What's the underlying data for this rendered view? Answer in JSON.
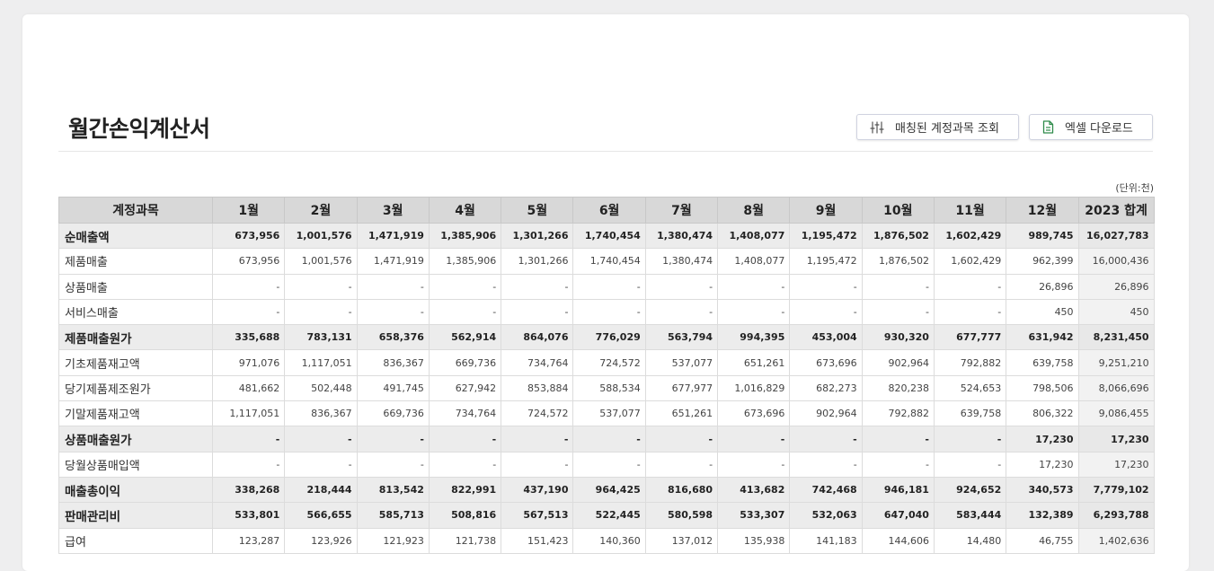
{
  "page": {
    "title": "월간손익계산서",
    "unit": "(단위:천)",
    "buttons": {
      "match_label": "매칭된 계정과목 조회",
      "excel_label": "엑셀 다운로드"
    },
    "icons": {
      "match": "sliders-icon",
      "excel": "spreadsheet-file-icon"
    },
    "colors": {
      "excel_icon": "#2e8b4a"
    }
  },
  "table": {
    "headers": [
      "계정과목",
      "1월",
      "2월",
      "3월",
      "4월",
      "5월",
      "6월",
      "7월",
      "8월",
      "9월",
      "10월",
      "11월",
      "12월",
      "2023 합계"
    ],
    "rows": [
      {
        "bold": true,
        "cells": [
          "순매출액",
          "673,956",
          "1,001,576",
          "1,471,919",
          "1,385,906",
          "1,301,266",
          "1,740,454",
          "1,380,474",
          "1,408,077",
          "1,195,472",
          "1,876,502",
          "1,602,429",
          "989,745",
          "16,027,783"
        ]
      },
      {
        "bold": false,
        "cells": [
          "제품매출",
          "673,956",
          "1,001,576",
          "1,471,919",
          "1,385,906",
          "1,301,266",
          "1,740,454",
          "1,380,474",
          "1,408,077",
          "1,195,472",
          "1,876,502",
          "1,602,429",
          "962,399",
          "16,000,436"
        ]
      },
      {
        "bold": false,
        "cells": [
          "상품매출",
          "-",
          "-",
          "-",
          "-",
          "-",
          "-",
          "-",
          "-",
          "-",
          "-",
          "-",
          "26,896",
          "26,896"
        ]
      },
      {
        "bold": false,
        "cells": [
          "서비스매출",
          "-",
          "-",
          "-",
          "-",
          "-",
          "-",
          "-",
          "-",
          "-",
          "-",
          "-",
          "450",
          "450"
        ]
      },
      {
        "bold": true,
        "cells": [
          "제품매출원가",
          "335,688",
          "783,131",
          "658,376",
          "562,914",
          "864,076",
          "776,029",
          "563,794",
          "994,395",
          "453,004",
          "930,320",
          "677,777",
          "631,942",
          "8,231,450"
        ]
      },
      {
        "bold": false,
        "cells": [
          "기초제품재고액",
          "971,076",
          "1,117,051",
          "836,367",
          "669,736",
          "734,764",
          "724,572",
          "537,077",
          "651,261",
          "673,696",
          "902,964",
          "792,882",
          "639,758",
          "9,251,210"
        ]
      },
      {
        "bold": false,
        "cells": [
          "당기제품제조원가",
          "481,662",
          "502,448",
          "491,745",
          "627,942",
          "853,884",
          "588,534",
          "677,977",
          "1,016,829",
          "682,273",
          "820,238",
          "524,653",
          "798,506",
          "8,066,696"
        ]
      },
      {
        "bold": false,
        "cells": [
          "기말제품재고액",
          "1,117,051",
          "836,367",
          "669,736",
          "734,764",
          "724,572",
          "537,077",
          "651,261",
          "673,696",
          "902,964",
          "792,882",
          "639,758",
          "806,322",
          "9,086,455"
        ]
      },
      {
        "bold": true,
        "cells": [
          "상품매출원가",
          "-",
          "-",
          "-",
          "-",
          "-",
          "-",
          "-",
          "-",
          "-",
          "-",
          "-",
          "17,230",
          "17,230"
        ]
      },
      {
        "bold": false,
        "cells": [
          "당월상품매입액",
          "-",
          "-",
          "-",
          "-",
          "-",
          "-",
          "-",
          "-",
          "-",
          "-",
          "-",
          "17,230",
          "17,230"
        ]
      },
      {
        "bold": true,
        "cells": [
          "매출총이익",
          "338,268",
          "218,444",
          "813,542",
          "822,991",
          "437,190",
          "964,425",
          "816,680",
          "413,682",
          "742,468",
          "946,181",
          "924,652",
          "340,573",
          "7,779,102"
        ]
      },
      {
        "bold": true,
        "cells": [
          "판매관리비",
          "533,801",
          "566,655",
          "585,713",
          "508,816",
          "567,513",
          "522,445",
          "580,598",
          "533,307",
          "532,063",
          "647,040",
          "583,444",
          "132,389",
          "6,293,788"
        ]
      },
      {
        "bold": false,
        "cells": [
          "급여",
          "123,287",
          "123,926",
          "121,923",
          "121,738",
          "151,423",
          "140,360",
          "137,012",
          "135,938",
          "141,183",
          "144,606",
          "14,480",
          "46,755",
          "1,402,636"
        ]
      }
    ]
  }
}
